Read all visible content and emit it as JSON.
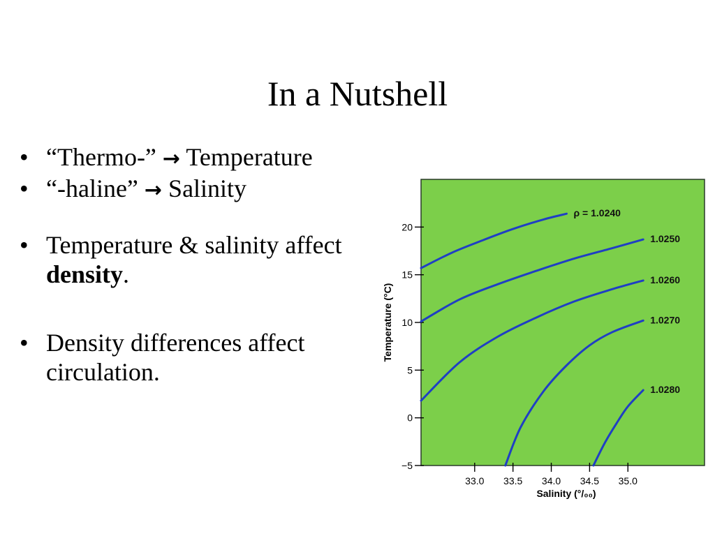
{
  "slide": {
    "title": "In a Nutshell",
    "bullet_glyph": "•",
    "arrow_glyph": "→",
    "bullets": [
      {
        "before": "“Thermo-” ",
        "after": " Temperature"
      },
      {
        "before": "“-haline” ",
        "after": " Salinity"
      },
      {
        "before": "Temperature & salinity affect ",
        "bold": "density",
        "after": "."
      },
      {
        "text": "Density differences affect circulation."
      }
    ]
  },
  "colors": {
    "plot_background": "#7ccf4a",
    "isopycnal": "#1f3fc4",
    "text": "#000000"
  },
  "chart_data": {
    "type": "line",
    "xlabel": "Salinity (°/₀₀)",
    "ylabel": "Temperature (°C)",
    "xlim": [
      32.3,
      36.0
    ],
    "ylim": [
      -5,
      25
    ],
    "xticks": [
      33.0,
      33.5,
      34.0,
      34.5,
      35.0
    ],
    "xtick_labels": [
      "33.0",
      "33.5",
      "34.0",
      "34.5",
      "35.0"
    ],
    "yticks": [
      -5,
      0,
      5,
      10,
      15,
      20
    ],
    "ytick_labels": [
      "−5",
      "0",
      "5",
      "10",
      "15",
      "20"
    ],
    "grid": false,
    "series": [
      {
        "name": "ρ = 1.0240",
        "x": [
          32.3,
          32.7,
          33.1,
          33.5,
          33.9,
          34.2
        ],
        "y": [
          15.7,
          17.3,
          18.6,
          19.8,
          20.8,
          21.4
        ]
      },
      {
        "name": "1.0250",
        "x": [
          32.3,
          32.8,
          33.3,
          33.8,
          34.3,
          34.8,
          35.2
        ],
        "y": [
          10.1,
          12.4,
          14.0,
          15.4,
          16.7,
          17.8,
          18.7
        ]
      },
      {
        "name": "1.0260",
        "x": [
          32.3,
          32.8,
          33.3,
          33.8,
          34.3,
          34.8,
          35.2
        ],
        "y": [
          1.8,
          5.8,
          8.5,
          10.5,
          12.2,
          13.5,
          14.4
        ]
      },
      {
        "name": "1.0270",
        "x": [
          33.4,
          33.6,
          33.9,
          34.2,
          34.5,
          34.8,
          35.2
        ],
        "y": [
          -5.0,
          -1.0,
          2.8,
          5.5,
          7.6,
          9.0,
          10.2
        ]
      },
      {
        "name": "1.0280",
        "x": [
          34.55,
          34.7,
          34.85,
          35.0,
          35.2
        ],
        "y": [
          -5.0,
          -2.6,
          -0.6,
          1.2,
          2.9
        ]
      }
    ]
  }
}
